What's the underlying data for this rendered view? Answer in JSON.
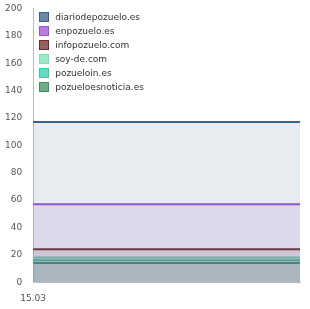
{
  "chart_data": {
    "type": "line",
    "categories": [
      "15.03",
      null
    ],
    "series": [
      {
        "name": "diariodepozuelo.es",
        "color": "#3b6186",
        "values": [
          117,
          117
        ]
      },
      {
        "name": "enpozuelo.es",
        "color": "#a050d0",
        "values": [
          57,
          57
        ]
      },
      {
        "name": "infopozuelo.com",
        "color": "#6e2c2c",
        "values": [
          24,
          24
        ]
      },
      {
        "name": "soy-de.com",
        "color": "#7fe0b2",
        "values": [
          18,
          18
        ]
      },
      {
        "name": "pozueloin.es",
        "color": "#3fc6b0",
        "values": [
          16,
          16
        ]
      },
      {
        "name": "pozueloesnoticia.es",
        "color": "#3f8f5f",
        "values": [
          14,
          14
        ]
      }
    ],
    "ylim": [
      0,
      200
    ],
    "yticks": [
      0,
      20,
      40,
      60,
      80,
      100,
      120,
      140,
      160,
      180,
      200
    ],
    "grid": false,
    "legend": "upper left"
  }
}
